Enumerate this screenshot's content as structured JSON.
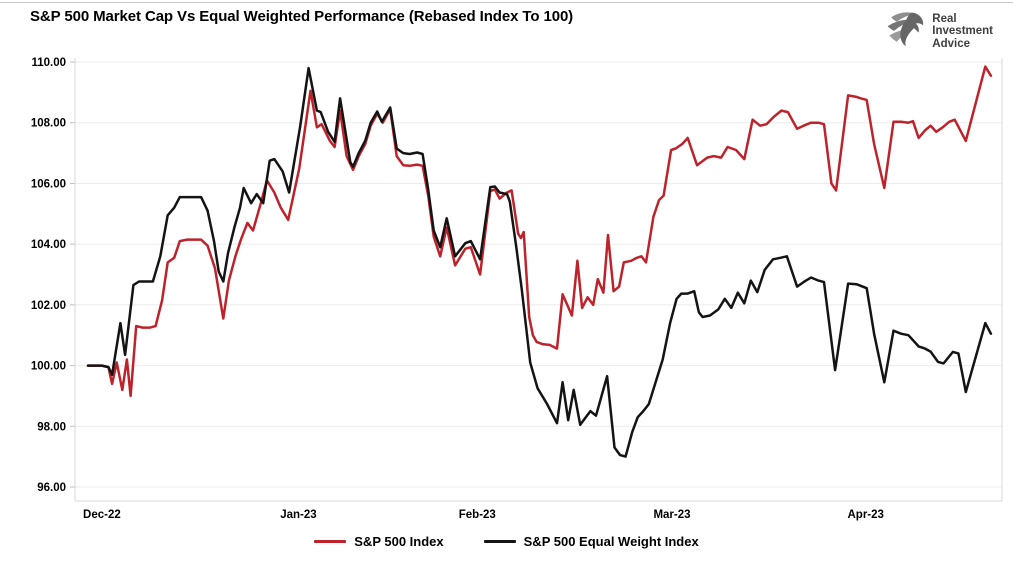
{
  "header": {
    "title": "S&P 500 Market Cap Vs Equal Weighted Performance (Rebased Index To 100)",
    "logo": {
      "line1": "Real",
      "line2": "Investment",
      "line3": "Advice"
    }
  },
  "legend": {
    "items": [
      {
        "label": "S&P 500 Index",
        "color": "#BE232B"
      },
      {
        "label": "S&P 500 Equal Weight Index",
        "color": "#141414"
      }
    ]
  },
  "chart_data": {
    "type": "line",
    "title": "S&P 500 Market Cap Vs Equal Weighted Performance (Rebased Index To 100)",
    "grid": true,
    "legend_position": "bottom",
    "y_axis": {
      "min": 96,
      "max": 110,
      "tick_step": 2,
      "ticks": [
        {
          "v": 110,
          "label": "110.00"
        },
        {
          "v": 108,
          "label": "108.00"
        },
        {
          "v": 106,
          "label": "106.00"
        },
        {
          "v": 104,
          "label": "104.00"
        },
        {
          "v": 102,
          "label": "102.00"
        },
        {
          "v": 100,
          "label": "100.00"
        },
        {
          "v": 98,
          "label": "98.00"
        },
        {
          "v": 96,
          "label": "96.00"
        }
      ]
    },
    "x_axis": {
      "ticks": [
        {
          "pct": 2.9,
          "label": "Dec-22"
        },
        {
          "pct": 24.1,
          "label": "Jan-23"
        },
        {
          "pct": 43.4,
          "label": "Feb-23"
        },
        {
          "pct": 64.4,
          "label": "Mar-23"
        },
        {
          "pct": 85.3,
          "label": "Apr-23"
        }
      ]
    },
    "series": [
      {
        "name": "S&P 500 Index",
        "color": "#BE232B",
        "points": [
          [
            1.4,
            100.0
          ],
          [
            2.2,
            100.0
          ],
          [
            2.9,
            100.0
          ],
          [
            3.6,
            99.95
          ],
          [
            4.0,
            99.4
          ],
          [
            4.5,
            100.1
          ],
          [
            5.1,
            99.2
          ],
          [
            5.6,
            100.2
          ],
          [
            6.0,
            99.0
          ],
          [
            6.6,
            101.3
          ],
          [
            7.3,
            101.25
          ],
          [
            8.1,
            101.25
          ],
          [
            8.7,
            101.3
          ],
          [
            9.4,
            102.15
          ],
          [
            10.0,
            103.4
          ],
          [
            10.7,
            103.55
          ],
          [
            11.3,
            104.1
          ],
          [
            12.1,
            104.15
          ],
          [
            12.8,
            104.15
          ],
          [
            13.6,
            104.15
          ],
          [
            14.3,
            103.95
          ],
          [
            15.1,
            103.2
          ],
          [
            16.0,
            101.55
          ],
          [
            16.6,
            102.8
          ],
          [
            17.3,
            103.6
          ],
          [
            17.9,
            104.15
          ],
          [
            18.6,
            104.7
          ],
          [
            19.2,
            104.45
          ],
          [
            20.0,
            105.3
          ],
          [
            20.7,
            106.1
          ],
          [
            21.5,
            105.7
          ],
          [
            22.2,
            105.2
          ],
          [
            23.0,
            104.8
          ],
          [
            24.2,
            106.5
          ],
          [
            25.4,
            109.05
          ],
          [
            26.1,
            107.85
          ],
          [
            26.6,
            107.95
          ],
          [
            27.5,
            107.4
          ],
          [
            28.0,
            107.2
          ],
          [
            28.6,
            108.4
          ],
          [
            29.3,
            106.9
          ],
          [
            30.0,
            106.45
          ],
          [
            30.6,
            106.9
          ],
          [
            31.3,
            107.3
          ],
          [
            31.9,
            107.9
          ],
          [
            32.6,
            108.3
          ],
          [
            33.2,
            108.0
          ],
          [
            34.0,
            108.45
          ],
          [
            34.7,
            106.9
          ],
          [
            35.4,
            106.6
          ],
          [
            36.1,
            106.58
          ],
          [
            36.9,
            106.62
          ],
          [
            37.5,
            106.58
          ],
          [
            38.1,
            105.6
          ],
          [
            38.7,
            104.25
          ],
          [
            39.4,
            103.6
          ],
          [
            40.1,
            104.55
          ],
          [
            41.0,
            103.3
          ],
          [
            42.1,
            103.85
          ],
          [
            42.7,
            103.9
          ],
          [
            43.7,
            103.0
          ],
          [
            44.8,
            105.75
          ],
          [
            45.3,
            105.8
          ],
          [
            45.8,
            105.5
          ],
          [
            46.6,
            105.7
          ],
          [
            47.1,
            105.77
          ],
          [
            47.8,
            104.35
          ],
          [
            48.1,
            104.2
          ],
          [
            48.4,
            104.4
          ],
          [
            49.0,
            101.6
          ],
          [
            49.4,
            101.0
          ],
          [
            49.8,
            100.78
          ],
          [
            50.5,
            100.7
          ],
          [
            51.2,
            100.68
          ],
          [
            52.0,
            100.56
          ],
          [
            52.6,
            102.35
          ],
          [
            53.6,
            101.65
          ],
          [
            54.2,
            103.45
          ],
          [
            54.7,
            101.9
          ],
          [
            55.3,
            102.25
          ],
          [
            55.9,
            102.0
          ],
          [
            56.4,
            102.85
          ],
          [
            57.0,
            102.4
          ],
          [
            57.5,
            104.3
          ],
          [
            58.1,
            102.45
          ],
          [
            58.7,
            102.6
          ],
          [
            59.2,
            103.4
          ],
          [
            60.0,
            103.45
          ],
          [
            60.6,
            103.55
          ],
          [
            61.1,
            103.6
          ],
          [
            61.6,
            103.4
          ],
          [
            62.4,
            104.9
          ],
          [
            63.0,
            105.45
          ],
          [
            63.5,
            105.6
          ],
          [
            64.3,
            107.1
          ],
          [
            64.8,
            107.15
          ],
          [
            65.5,
            107.3
          ],
          [
            66.1,
            107.5
          ],
          [
            67.1,
            106.6
          ],
          [
            68.2,
            106.85
          ],
          [
            68.9,
            106.9
          ],
          [
            69.7,
            106.85
          ],
          [
            70.4,
            107.2
          ],
          [
            71.3,
            107.1
          ],
          [
            72.2,
            106.8
          ],
          [
            73.1,
            108.1
          ],
          [
            73.9,
            107.9
          ],
          [
            74.6,
            107.95
          ],
          [
            75.4,
            108.2
          ],
          [
            76.2,
            108.4
          ],
          [
            76.9,
            108.35
          ],
          [
            77.9,
            107.8
          ],
          [
            78.6,
            107.9
          ],
          [
            79.4,
            108.0
          ],
          [
            80.2,
            108.0
          ],
          [
            80.8,
            107.95
          ],
          [
            81.6,
            106.0
          ],
          [
            82.1,
            105.77
          ],
          [
            83.4,
            108.9
          ],
          [
            84.3,
            108.85
          ],
          [
            84.8,
            108.8
          ],
          [
            85.4,
            108.75
          ],
          [
            86.2,
            107.3
          ],
          [
            87.3,
            105.85
          ],
          [
            88.3,
            108.03
          ],
          [
            89.1,
            108.03
          ],
          [
            89.9,
            108.0
          ],
          [
            90.4,
            108.05
          ],
          [
            91.0,
            107.5
          ],
          [
            91.7,
            107.75
          ],
          [
            92.3,
            107.9
          ],
          [
            92.9,
            107.7
          ],
          [
            93.6,
            107.85
          ],
          [
            94.3,
            108.03
          ],
          [
            94.9,
            108.1
          ],
          [
            96.1,
            107.4
          ],
          [
            98.2,
            109.85
          ],
          [
            98.8,
            109.55
          ]
        ]
      },
      {
        "name": "S&P 500 Equal Weight Index",
        "color": "#141414",
        "points": [
          [
            1.4,
            100.0
          ],
          [
            2.2,
            100.0
          ],
          [
            2.9,
            100.0
          ],
          [
            3.6,
            99.95
          ],
          [
            4.0,
            99.7
          ],
          [
            4.9,
            101.4
          ],
          [
            5.4,
            100.35
          ],
          [
            6.3,
            102.65
          ],
          [
            6.9,
            102.77
          ],
          [
            7.7,
            102.77
          ],
          [
            8.4,
            102.77
          ],
          [
            9.2,
            103.6
          ],
          [
            10.0,
            104.95
          ],
          [
            10.7,
            105.2
          ],
          [
            11.3,
            105.55
          ],
          [
            12.1,
            105.55
          ],
          [
            12.8,
            105.55
          ],
          [
            13.6,
            105.55
          ],
          [
            14.3,
            105.1
          ],
          [
            15.0,
            104.1
          ],
          [
            15.5,
            103.1
          ],
          [
            16.0,
            102.77
          ],
          [
            16.5,
            103.7
          ],
          [
            17.2,
            104.55
          ],
          [
            17.8,
            105.2
          ],
          [
            18.2,
            105.85
          ],
          [
            19.0,
            105.35
          ],
          [
            19.6,
            105.65
          ],
          [
            20.3,
            105.35
          ],
          [
            21.0,
            106.75
          ],
          [
            21.5,
            106.8
          ],
          [
            22.4,
            106.4
          ],
          [
            23.1,
            105.7
          ],
          [
            24.3,
            107.9
          ],
          [
            25.2,
            109.8
          ],
          [
            26.1,
            108.4
          ],
          [
            26.5,
            108.35
          ],
          [
            27.3,
            107.7
          ],
          [
            28.0,
            107.37
          ],
          [
            28.6,
            108.8
          ],
          [
            29.7,
            106.7
          ],
          [
            30.0,
            106.55
          ],
          [
            30.6,
            107.0
          ],
          [
            31.3,
            107.4
          ],
          [
            31.9,
            108.0
          ],
          [
            32.6,
            108.37
          ],
          [
            33.1,
            108.03
          ],
          [
            34.0,
            108.5
          ],
          [
            34.7,
            107.15
          ],
          [
            35.4,
            107.0
          ],
          [
            36.1,
            106.97
          ],
          [
            36.9,
            107.02
          ],
          [
            37.5,
            106.97
          ],
          [
            38.1,
            105.8
          ],
          [
            38.7,
            104.45
          ],
          [
            39.4,
            103.9
          ],
          [
            40.1,
            104.85
          ],
          [
            41.0,
            103.6
          ],
          [
            42.1,
            104.03
          ],
          [
            42.7,
            104.1
          ],
          [
            43.7,
            103.5
          ],
          [
            44.8,
            105.88
          ],
          [
            45.3,
            105.9
          ],
          [
            45.8,
            105.7
          ],
          [
            46.6,
            105.65
          ],
          [
            46.9,
            105.4
          ],
          [
            47.6,
            103.9
          ],
          [
            48.2,
            102.5
          ],
          [
            49.1,
            100.1
          ],
          [
            49.9,
            99.25
          ],
          [
            50.9,
            98.75
          ],
          [
            52.0,
            98.1
          ],
          [
            52.6,
            99.45
          ],
          [
            53.2,
            98.2
          ],
          [
            53.8,
            99.2
          ],
          [
            54.5,
            98.05
          ],
          [
            55.6,
            98.5
          ],
          [
            56.2,
            98.35
          ],
          [
            57.4,
            99.65
          ],
          [
            58.2,
            97.3
          ],
          [
            58.8,
            97.05
          ],
          [
            59.4,
            97.0
          ],
          [
            60.1,
            97.8
          ],
          [
            60.7,
            98.3
          ],
          [
            61.3,
            98.5
          ],
          [
            61.9,
            98.73
          ],
          [
            63.4,
            100.2
          ],
          [
            64.2,
            101.4
          ],
          [
            64.9,
            102.2
          ],
          [
            65.4,
            102.37
          ],
          [
            66.1,
            102.37
          ],
          [
            66.8,
            102.45
          ],
          [
            67.3,
            101.75
          ],
          [
            67.7,
            101.6
          ],
          [
            68.5,
            101.65
          ],
          [
            69.4,
            101.85
          ],
          [
            70.1,
            102.2
          ],
          [
            70.8,
            101.9
          ],
          [
            71.5,
            102.4
          ],
          [
            72.2,
            102.05
          ],
          [
            72.9,
            102.8
          ],
          [
            73.6,
            102.42
          ],
          [
            74.4,
            103.15
          ],
          [
            75.3,
            103.5
          ],
          [
            76.1,
            103.55
          ],
          [
            76.8,
            103.6
          ],
          [
            77.9,
            102.6
          ],
          [
            78.6,
            102.75
          ],
          [
            79.4,
            102.9
          ],
          [
            80.2,
            102.8
          ],
          [
            80.8,
            102.75
          ],
          [
            82.0,
            99.85
          ],
          [
            83.4,
            102.7
          ],
          [
            84.3,
            102.68
          ],
          [
            85.4,
            102.55
          ],
          [
            86.2,
            101.05
          ],
          [
            87.3,
            99.45
          ],
          [
            88.3,
            101.15
          ],
          [
            89.1,
            101.05
          ],
          [
            89.9,
            101.0
          ],
          [
            91.0,
            100.63
          ],
          [
            91.7,
            100.56
          ],
          [
            92.3,
            100.46
          ],
          [
            93.1,
            100.12
          ],
          [
            93.7,
            100.07
          ],
          [
            94.7,
            100.45
          ],
          [
            95.3,
            100.4
          ],
          [
            96.1,
            99.13
          ],
          [
            98.2,
            101.4
          ],
          [
            98.8,
            101.05
          ]
        ]
      }
    ]
  }
}
